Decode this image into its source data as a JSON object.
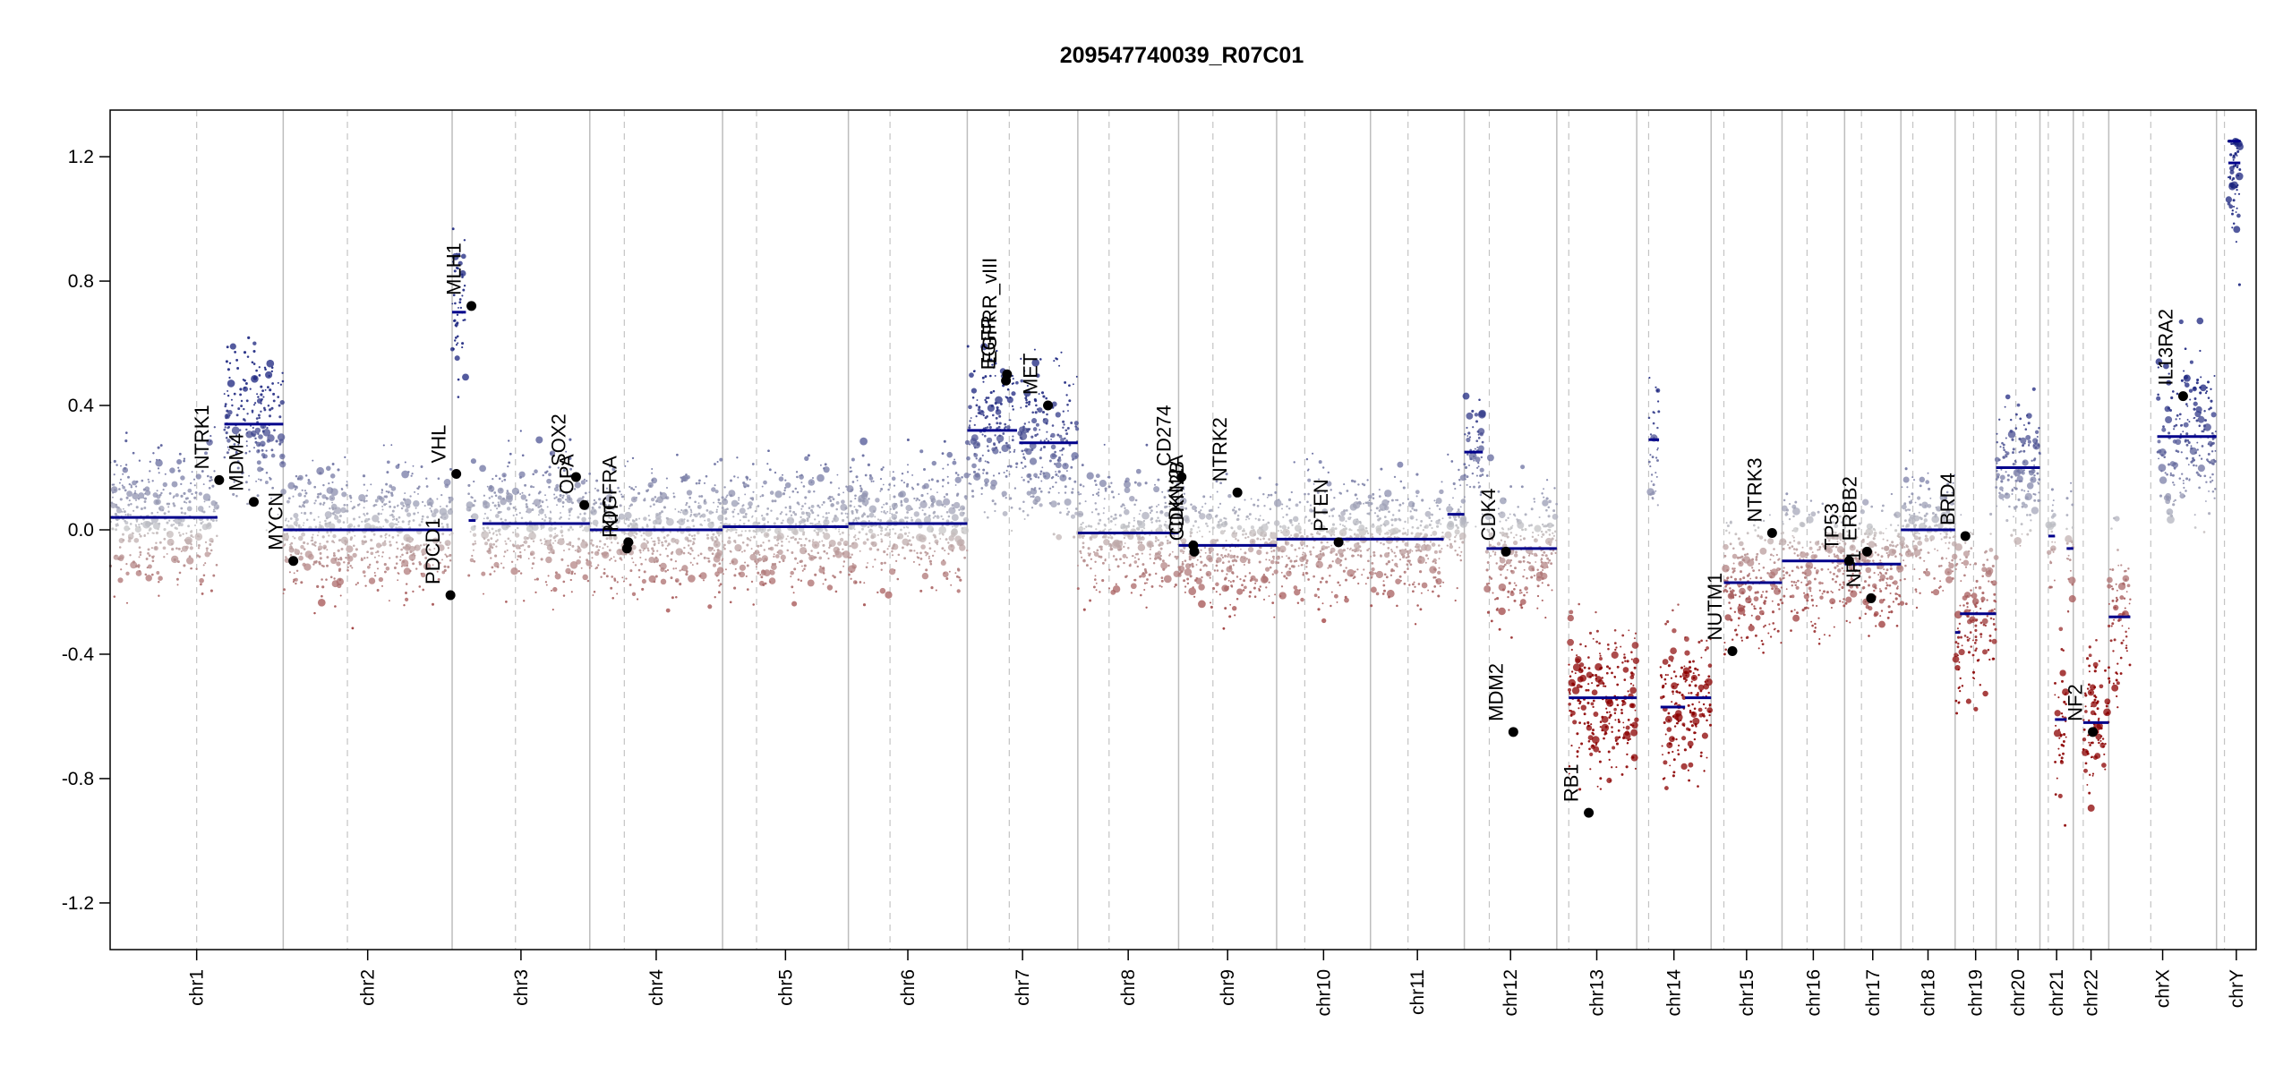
{
  "chart_data": {
    "type": "scatter",
    "title": "209547740039_R07C01",
    "xlabel": "",
    "ylabel": "",
    "ylim": [
      -1.35,
      1.35
    ],
    "y_ticks": [
      {
        "value": 1.2,
        "label": "1.2"
      },
      {
        "value": 0.8,
        "label": "0.8"
      },
      {
        "value": 0.4,
        "label": "0.4"
      },
      {
        "value": 0.0,
        "label": "0.0"
      },
      {
        "value": -0.4,
        "label": "-0.4"
      },
      {
        "value": -0.8,
        "label": "-0.8"
      },
      {
        "value": -1.2,
        "label": "-1.2"
      }
    ],
    "chromosomes": [
      {
        "name": "chr1",
        "size": 249,
        "centromere": 0.5
      },
      {
        "name": "chr2",
        "size": 243,
        "centromere": 0.38
      },
      {
        "name": "chr3",
        "size": 198,
        "centromere": 0.46
      },
      {
        "name": "chr4",
        "size": 191,
        "centromere": 0.26
      },
      {
        "name": "chr5",
        "size": 181,
        "centromere": 0.27
      },
      {
        "name": "chr6",
        "size": 171,
        "centromere": 0.35
      },
      {
        "name": "chr7",
        "size": 159,
        "centromere": 0.38
      },
      {
        "name": "chr8",
        "size": 145,
        "centromere": 0.31
      },
      {
        "name": "chr9",
        "size": 141,
        "centromere": 0.35
      },
      {
        "name": "chr10",
        "size": 135,
        "centromere": 0.3
      },
      {
        "name": "chr11",
        "size": 135,
        "centromere": 0.4
      },
      {
        "name": "chr12",
        "size": 133,
        "centromere": 0.27
      },
      {
        "name": "chr13",
        "size": 115,
        "centromere": 0.15
      },
      {
        "name": "chr14",
        "size": 107,
        "centromere": 0.16
      },
      {
        "name": "chr15",
        "size": 102,
        "centromere": 0.18
      },
      {
        "name": "chr16",
        "size": 90,
        "centromere": 0.4
      },
      {
        "name": "chr17",
        "size": 81,
        "centromere": 0.3
      },
      {
        "name": "chr18",
        "size": 78,
        "centromere": 0.22
      },
      {
        "name": "chr19",
        "size": 59,
        "centromere": 0.45
      },
      {
        "name": "chr20",
        "size": 63,
        "centromere": 0.45
      },
      {
        "name": "chr21",
        "size": 48,
        "centromere": 0.25
      },
      {
        "name": "chr22",
        "size": 51,
        "centromere": 0.28
      },
      {
        "name": "chrX",
        "size": 155,
        "centromere": 0.39
      },
      {
        "name": "chrY",
        "size": 57,
        "centromere": 0.2
      }
    ],
    "segments": [
      {
        "chr": "chr1",
        "start": 0.0,
        "end": 0.62,
        "value": 0.04
      },
      {
        "chr": "chr1",
        "start": 0.66,
        "end": 1.0,
        "value": 0.34
      },
      {
        "chr": "chr2",
        "start": 0.0,
        "end": 1.0,
        "value": 0.0
      },
      {
        "chr": "chr3",
        "start": 0.0,
        "end": 0.1,
        "value": 0.7
      },
      {
        "chr": "chr3",
        "start": 0.12,
        "end": 0.17,
        "value": 0.03
      },
      {
        "chr": "chr3",
        "start": 0.22,
        "end": 1.0,
        "value": 0.02
      },
      {
        "chr": "chr4",
        "start": 0.0,
        "end": 1.0,
        "value": 0.0
      },
      {
        "chr": "chr5",
        "start": 0.0,
        "end": 0.7,
        "value": 0.01
      },
      {
        "chr": "chr5",
        "start": 0.7,
        "end": 1.0,
        "value": 0.01
      },
      {
        "chr": "chr6",
        "start": 0.0,
        "end": 1.0,
        "value": 0.02
      },
      {
        "chr": "chr7",
        "start": 0.0,
        "end": 0.45,
        "value": 0.32
      },
      {
        "chr": "chr7",
        "start": 0.47,
        "end": 1.0,
        "value": 0.28
      },
      {
        "chr": "chr8",
        "start": 0.0,
        "end": 1.0,
        "value": -0.01
      },
      {
        "chr": "chr9",
        "start": 0.0,
        "end": 1.0,
        "value": -0.05
      },
      {
        "chr": "chr10",
        "start": 0.0,
        "end": 1.0,
        "value": -0.03
      },
      {
        "chr": "chr11",
        "start": 0.0,
        "end": 0.78,
        "value": -0.03
      },
      {
        "chr": "chr11",
        "start": 0.82,
        "end": 1.0,
        "value": 0.05
      },
      {
        "chr": "chr12",
        "start": 0.0,
        "end": 0.2,
        "value": 0.25
      },
      {
        "chr": "chr12",
        "start": 0.24,
        "end": 1.0,
        "value": -0.06
      },
      {
        "chr": "chr13",
        "start": 0.15,
        "end": 1.0,
        "value": -0.54
      },
      {
        "chr": "chr14",
        "start": 0.16,
        "end": 0.3,
        "value": 0.29
      },
      {
        "chr": "chr14",
        "start": 0.32,
        "end": 0.65,
        "value": -0.57
      },
      {
        "chr": "chr14",
        "start": 0.65,
        "end": 1.0,
        "value": -0.54
      },
      {
        "chr": "chr15",
        "start": 0.18,
        "end": 1.0,
        "value": -0.17
      },
      {
        "chr": "chr16",
        "start": 0.0,
        "end": 1.0,
        "value": -0.1
      },
      {
        "chr": "chr17",
        "start": 0.0,
        "end": 1.0,
        "value": -0.11
      },
      {
        "chr": "chr18",
        "start": 0.0,
        "end": 1.0,
        "value": 0.0
      },
      {
        "chr": "chr19",
        "start": 0.0,
        "end": 0.12,
        "value": -0.33
      },
      {
        "chr": "chr19",
        "start": 0.12,
        "end": 1.0,
        "value": -0.27
      },
      {
        "chr": "chr20",
        "start": 0.0,
        "end": 1.0,
        "value": 0.2
      },
      {
        "chr": "chr21",
        "start": 0.25,
        "end": 0.45,
        "value": -0.02
      },
      {
        "chr": "chr21",
        "start": 0.45,
        "end": 0.8,
        "value": -0.61
      },
      {
        "chr": "chr21",
        "start": 0.8,
        "end": 1.0,
        "value": -0.06
      },
      {
        "chr": "chr22",
        "start": 0.28,
        "end": 1.0,
        "value": -0.62
      },
      {
        "chr": "chrX",
        "start": 0.0,
        "end": 0.2,
        "value": -0.28
      },
      {
        "chr": "chrX",
        "start": 0.45,
        "end": 1.0,
        "value": 0.3
      },
      {
        "chr": "chrY",
        "start": 0.3,
        "end": 0.6,
        "value": 1.18
      },
      {
        "chr": "chrY",
        "start": 0.3,
        "end": 0.6,
        "value": 1.25
      }
    ],
    "genes": [
      {
        "name": "NTRK1",
        "chr": "chr1",
        "pos": 0.63,
        "value": 0.16
      },
      {
        "name": "MDM4",
        "chr": "chr1",
        "pos": 0.83,
        "value": 0.09
      },
      {
        "name": "MYCN",
        "chr": "chr2",
        "pos": 0.06,
        "value": -0.1
      },
      {
        "name": "PDCD1",
        "chr": "chr2",
        "pos": 0.99,
        "value": -0.21
      },
      {
        "name": "VHL",
        "chr": "chr3",
        "pos": 0.03,
        "value": 0.18
      },
      {
        "name": "MLH1",
        "chr": "chr3",
        "pos": 0.14,
        "value": 0.72
      },
      {
        "name": "SOX2",
        "chr": "chr3",
        "pos": 0.9,
        "value": 0.17
      },
      {
        "name": "OPA",
        "chr": "chr3",
        "pos": 0.96,
        "value": 0.08
      },
      {
        "name": "PDGFRA",
        "chr": "chr4",
        "pos": 0.28,
        "value": -0.06
      },
      {
        "name": "KIT",
        "chr": "chr4",
        "pos": 0.29,
        "value": -0.04
      },
      {
        "name": "EGFR",
        "chr": "chr7",
        "pos": 0.35,
        "value": 0.48
      },
      {
        "name": "EGFRR_vIII",
        "chr": "chr7",
        "pos": 0.36,
        "value": 0.5
      },
      {
        "name": "MET",
        "chr": "chr7",
        "pos": 0.73,
        "value": 0.4
      },
      {
        "name": "CD274",
        "chr": "chr9",
        "pos": 0.03,
        "value": 0.17
      },
      {
        "name": "CDKN2A",
        "chr": "chr9",
        "pos": 0.15,
        "value": -0.05
      },
      {
        "name": "CDKN2B",
        "chr": "chr9",
        "pos": 0.16,
        "value": -0.07
      },
      {
        "name": "NTRK2",
        "chr": "chr9",
        "pos": 0.6,
        "value": 0.12
      },
      {
        "name": "PTEN",
        "chr": "chr10",
        "pos": 0.66,
        "value": -0.04
      },
      {
        "name": "CDK4",
        "chr": "chr12",
        "pos": 0.45,
        "value": -0.07
      },
      {
        "name": "MDM2",
        "chr": "chr12",
        "pos": 0.53,
        "value": -0.65
      },
      {
        "name": "RB1",
        "chr": "chr13",
        "pos": 0.4,
        "value": -0.91
      },
      {
        "name": "NUTM1",
        "chr": "chr15",
        "pos": 0.3,
        "value": -0.39
      },
      {
        "name": "NTRK3",
        "chr": "chr15",
        "pos": 0.86,
        "value": -0.01
      },
      {
        "name": "TP53",
        "chr": "chr17",
        "pos": 0.08,
        "value": -0.1
      },
      {
        "name": "ERBB2",
        "chr": "chr17",
        "pos": 0.4,
        "value": -0.07
      },
      {
        "name": "NF1",
        "chr": "chr17",
        "pos": 0.47,
        "value": -0.22
      },
      {
        "name": "BRD4",
        "chr": "chr19",
        "pos": 0.25,
        "value": -0.02
      },
      {
        "name": "NF2",
        "chr": "chr22",
        "pos": 0.55,
        "value": -0.65
      },
      {
        "name": "IL13RA2",
        "chr": "chrX",
        "pos": 0.69,
        "value": 0.43
      }
    ],
    "colors": {
      "gain": "#1a237e",
      "neutral": "#c8c8c8",
      "loss": "#8b0000",
      "segment": "#00008b",
      "gene_point": "#000000",
      "chr_boundary": "#bdbdbd",
      "centromere": "#c4c4c4"
    }
  }
}
